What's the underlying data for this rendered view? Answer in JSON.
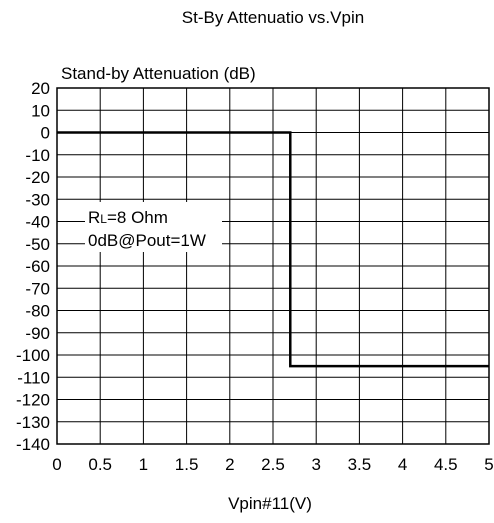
{
  "chart_data": {
    "type": "line",
    "title": "St-By Attenuatio vs.Vpin",
    "ylabel": "Stand-by Attenuation (dB)",
    "xlabel": "Vpin#11(V)",
    "xlim": [
      0,
      5
    ],
    "ylim": [
      -140,
      20
    ],
    "grid": true,
    "x_ticks": [
      0,
      0.5,
      1,
      1.5,
      2,
      2.5,
      3,
      3.5,
      4,
      4.5,
      5
    ],
    "x_tick_labels": [
      "0",
      "0.5",
      "1",
      "1.5",
      "2",
      "2.5",
      "3",
      "3.5",
      "4",
      "4.5",
      "5"
    ],
    "y_ticks": [
      20,
      10,
      0,
      -10,
      -20,
      -30,
      -40,
      -50,
      -60,
      -70,
      -80,
      -90,
      -100,
      -110,
      -120,
      -130,
      -140
    ],
    "y_tick_labels": [
      "20",
      "10",
      "0",
      "-10",
      "-20",
      "-30",
      "-40",
      "-50",
      "-60",
      "-70",
      "-80",
      "-90",
      "-100",
      "-110",
      "-120",
      "-130",
      "-140"
    ],
    "series": [
      {
        "x": [
          0,
          2.7,
          2.7,
          5
        ],
        "y": [
          0,
          0,
          -105,
          -105
        ],
        "color": "#000000"
      }
    ],
    "annotation": {
      "line1_main": "R",
      "line1_sub": "L",
      "line1_rest": "=8 Ohm",
      "line2": "0dB@Pout=1W"
    }
  }
}
